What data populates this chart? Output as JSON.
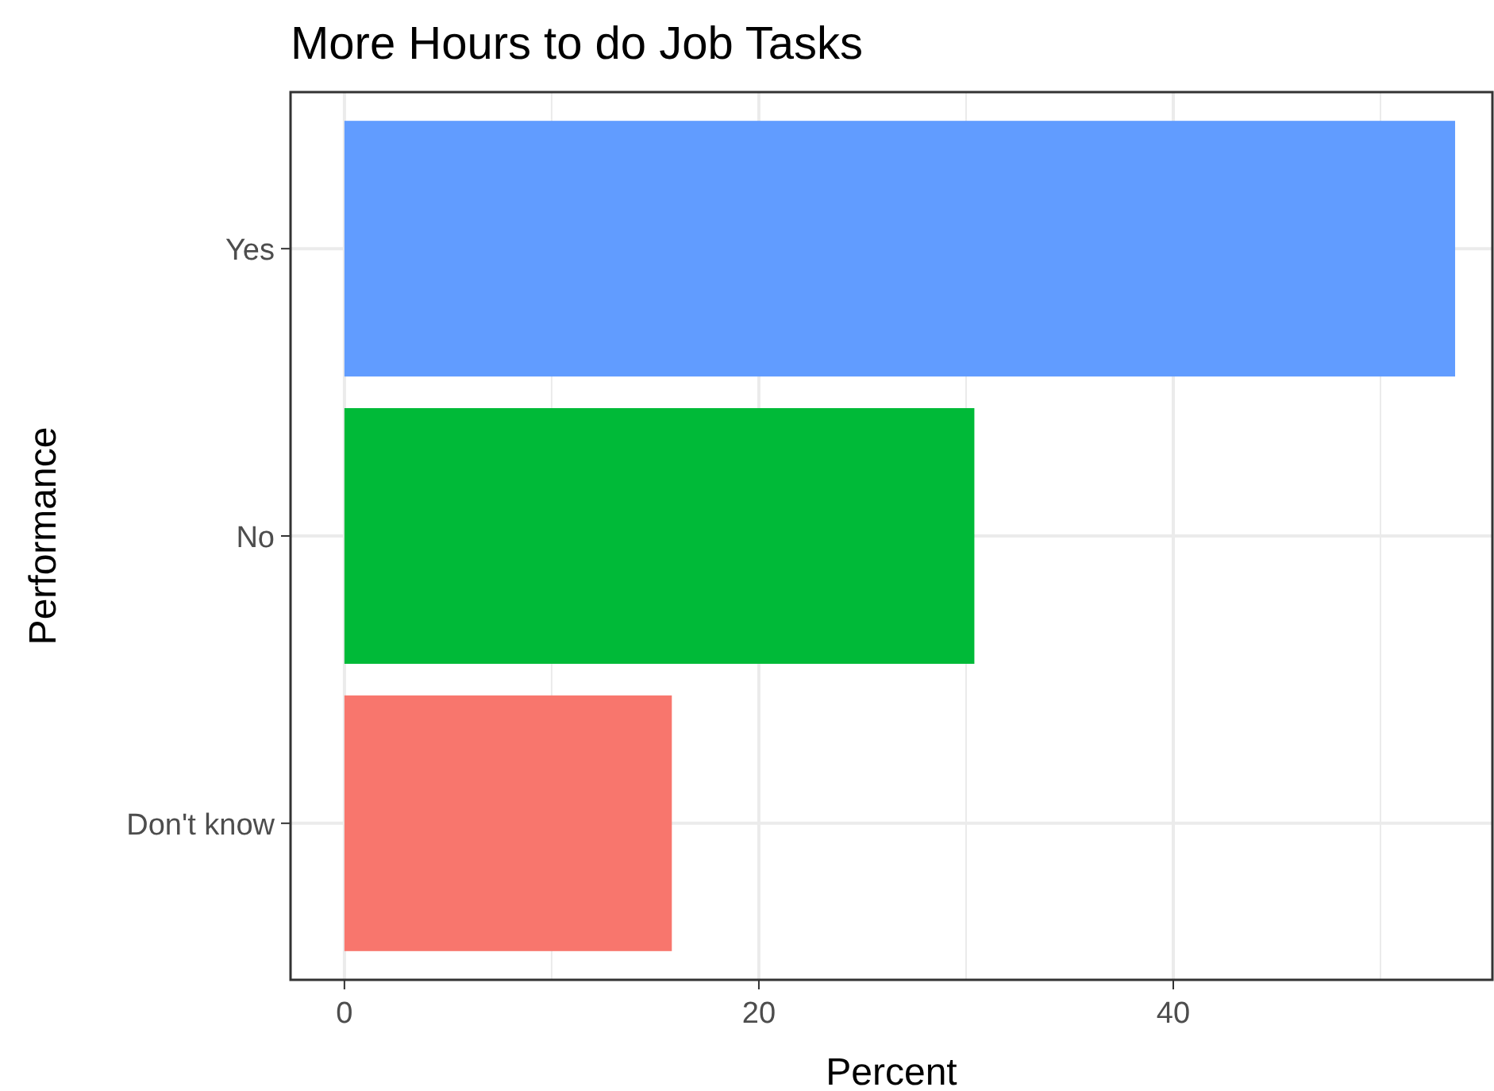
{
  "chart_data": {
    "type": "bar",
    "orientation": "horizontal",
    "title": "More Hours to do Job Tasks",
    "xlabel": "Percent",
    "ylabel": "Performance",
    "categories": [
      "Yes",
      "No",
      "Don't know"
    ],
    "values": [
      53.6,
      30.4,
      15.8
    ],
    "colors": [
      "#619cff",
      "#00ba38",
      "#f8766d"
    ],
    "xlim": [
      -2.6,
      55.4
    ],
    "xticks": [
      0,
      20,
      40
    ],
    "grid": true
  }
}
